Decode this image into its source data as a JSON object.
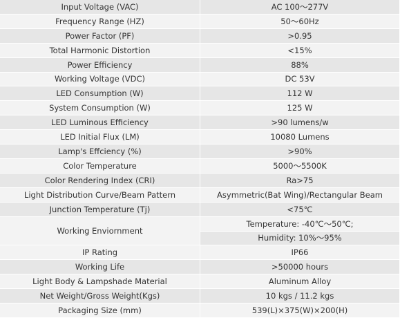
{
  "table": {
    "rows": [
      {
        "label": "Input Voltage (VAC)",
        "values": [
          "AC 100～277V"
        ]
      },
      {
        "label": "Frequency Range (HZ)",
        "values": [
          "50～60Hz"
        ]
      },
      {
        "label": "Power Factor (PF)",
        "values": [
          ">0.95"
        ]
      },
      {
        "label": "Total Harmonic Distortion",
        "values": [
          "<15%"
        ]
      },
      {
        "label": "Power Efficiency",
        "values": [
          "88%"
        ]
      },
      {
        "label": "Working Voltage (VDC)",
        "values": [
          "DC 53V"
        ]
      },
      {
        "label": "LED Consumption (W)",
        "values": [
          "112 W"
        ]
      },
      {
        "label": "System Consumption (W)",
        "values": [
          "125 W"
        ]
      },
      {
        "label": "LED Luminous Efficiency",
        "values": [
          ">90 lumens/w"
        ]
      },
      {
        "label": "LED Initial Flux (LM)",
        "values": [
          "10080 Lumens"
        ]
      },
      {
        "label": "Lamp's Effciency (%)",
        "values": [
          ">90%"
        ]
      },
      {
        "label": "Color Temperature",
        "values": [
          "5000～5500K"
        ]
      },
      {
        "label": "Color Rendering Index (CRI)",
        "values": [
          "Ra>75"
        ]
      },
      {
        "label": "Light Distribution Curve/Beam Pattern",
        "values": [
          "Asymmetric(Bat Wing)/Rectangular Beam"
        ]
      },
      {
        "label": "Junction Temperature (Tj)",
        "values": [
          "<75℃"
        ]
      },
      {
        "label": "Working Enviornment",
        "values": [
          "Temperature: -40℃～50℃;",
          "Humidity: 10%～95%"
        ]
      },
      {
        "label": "IP Rating",
        "values": [
          "IP66"
        ]
      },
      {
        "label": "Working Life",
        "values": [
          ">50000 hours"
        ]
      },
      {
        "label": "Light Body & Lampshade Material",
        "values": [
          "Aluminum Alloy"
        ]
      },
      {
        "label": "Net Weight/Gross Weight(Kgs)",
        "values": [
          "10 kgs / 11.2 kgs"
        ]
      },
      {
        "label": "Packaging Size (mm)",
        "values": [
          "539(L)×375(W)×200(H)"
        ]
      }
    ]
  }
}
